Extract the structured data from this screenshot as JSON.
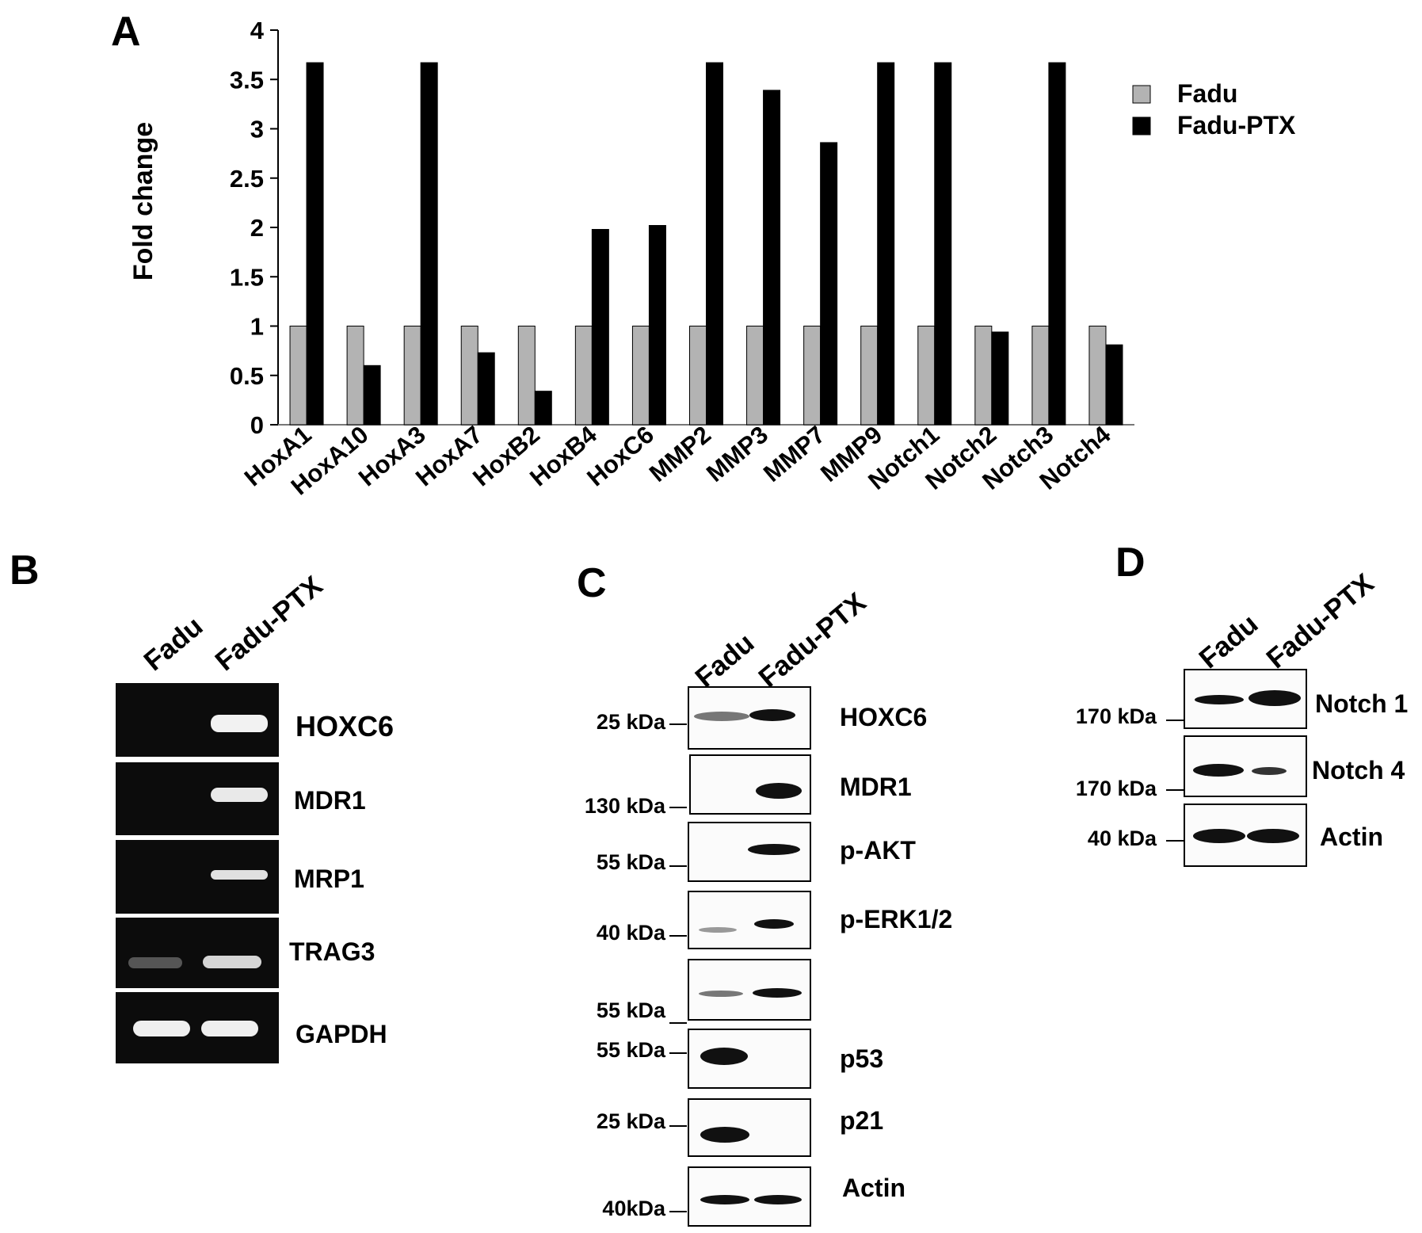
{
  "panels": {
    "a": "A",
    "b": "B",
    "c": "C",
    "d": "D"
  },
  "chart_data": {
    "type": "bar",
    "title": "",
    "xlabel": "",
    "ylabel": "Fold change",
    "ylim": [
      0,
      4
    ],
    "yticks": [
      "0",
      "0.5",
      "1",
      "1.5",
      "2",
      "2.5",
      "3",
      "3.5",
      "4"
    ],
    "categories": [
      "HoxA1",
      "HoxA10",
      "HoxA3",
      "HoxA7",
      "HoxB2",
      "HoxB4",
      "HoxC6",
      "MMP2",
      "MMP3",
      "MMP7",
      "MMP9",
      "Notch1",
      "Notch2",
      "Notch3",
      "Notch4"
    ],
    "series": [
      {
        "name": "Fadu",
        "color": "#b3b3b3",
        "values": [
          1,
          1,
          1,
          1,
          1,
          1,
          1,
          1,
          1,
          1,
          1,
          1,
          1,
          1,
          1
        ]
      },
      {
        "name": "Fadu-PTX",
        "color": "#000000",
        "values": [
          3.67,
          0.6,
          3.67,
          0.73,
          0.34,
          1.98,
          2.02,
          3.67,
          3.39,
          2.86,
          3.67,
          3.67,
          0.94,
          3.67,
          0.81
        ]
      }
    ],
    "legend": "top-right"
  },
  "gel_b": {
    "lanes": [
      "Fadu",
      "Fadu-PTX"
    ],
    "rows": [
      "HOXC6",
      "MDR1",
      "MRP1",
      "TRAG3",
      "GAPDH"
    ]
  },
  "blot_c": {
    "lanes": [
      "Fadu",
      "Fadu-PTX"
    ],
    "rows": [
      "HOXC6",
      "MDR1",
      "p-AKT",
      "p-ERK1/2",
      "",
      "p53",
      "p21",
      "Actin"
    ],
    "markers": [
      "25 kDa",
      "130 kDa",
      "55 kDa",
      "40 kDa",
      "55 kDa",
      "55 kDa",
      "25 kDa",
      "40kDa"
    ]
  },
  "blot_d": {
    "lanes": [
      "Fadu",
      "Fadu-PTX"
    ],
    "rows": [
      "Notch 1",
      "Notch 4",
      "Actin"
    ],
    "markers": [
      "170 kDa",
      "170 kDa",
      "40 kDa"
    ]
  }
}
